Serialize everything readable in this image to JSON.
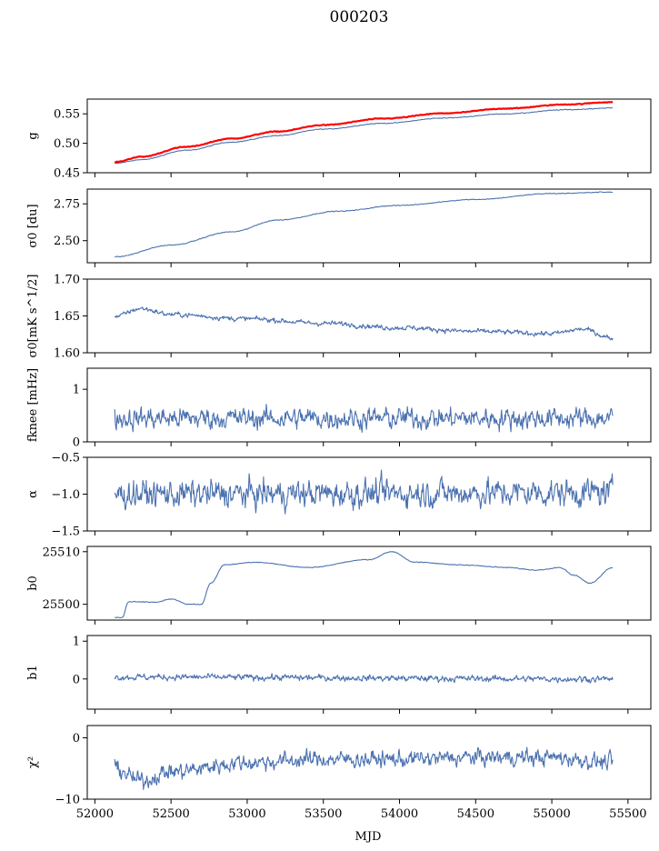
{
  "chart_data": {
    "type": "line",
    "title": "000203",
    "xlabel": "MJD",
    "xlim": [
      51950,
      55650
    ],
    "xticks": [
      52000,
      52500,
      53000,
      53500,
      54000,
      54500,
      55000,
      55500
    ],
    "xtick_labels": [
      "52000",
      "52500",
      "53000",
      "53500",
      "54000",
      "54500",
      "55000",
      "55500"
    ],
    "series_color": "#4c72b0",
    "highlight_color": "#ff0000",
    "x_start": 52130,
    "x_end": 55400,
    "panels": [
      {
        "ylabel": "g",
        "ylim": [
          0.45,
          0.575
        ],
        "yticks": [
          0.45,
          0.5,
          0.55
        ],
        "ytick_labels": [
          "0.45",
          "0.50",
          "0.55"
        ],
        "series": [
          {
            "color": "#4c72b0",
            "kind": "smooth",
            "anchors": [
              [
                52130,
                0.466
              ],
              [
                52300,
                0.472
              ],
              [
                52600,
                0.488
              ],
              [
                52900,
                0.502
              ],
              [
                53200,
                0.513
              ],
              [
                53500,
                0.524
              ],
              [
                53900,
                0.534
              ],
              [
                54300,
                0.543
              ],
              [
                54700,
                0.55
              ],
              [
                55100,
                0.557
              ],
              [
                55400,
                0.56
              ]
            ]
          },
          {
            "color": "#ff0000",
            "kind": "smooth",
            "width": 2.2,
            "anchors": [
              [
                52130,
                0.468
              ],
              [
                52300,
                0.477
              ],
              [
                52600,
                0.494
              ],
              [
                52900,
                0.508
              ],
              [
                53200,
                0.52
              ],
              [
                53500,
                0.531
              ],
              [
                53900,
                0.542
              ],
              [
                54300,
                0.551
              ],
              [
                54700,
                0.559
              ],
              [
                55100,
                0.566
              ],
              [
                55400,
                0.57
              ]
            ]
          }
        ]
      },
      {
        "ylabel": "σ0 [du]",
        "ylim": [
          2.35,
          2.85
        ],
        "yticks": [
          2.5,
          2.75
        ],
        "ytick_labels": [
          "2.50",
          "2.75"
        ],
        "series": [
          {
            "color": "#4c72b0",
            "kind": "smooth",
            "anchors": [
              [
                52130,
                2.39
              ],
              [
                52500,
                2.47
              ],
              [
                52900,
                2.56
              ],
              [
                53200,
                2.64
              ],
              [
                53600,
                2.7
              ],
              [
                54000,
                2.74
              ],
              [
                54500,
                2.78
              ],
              [
                55000,
                2.82
              ],
              [
                55400,
                2.83
              ]
            ]
          }
        ]
      },
      {
        "ylabel": "σ0[mK s^1/2]",
        "ylim": [
          1.6,
          1.7
        ],
        "yticks": [
          1.6,
          1.65,
          1.7
        ],
        "ytick_labels": [
          "1.60",
          "1.65",
          "1.70"
        ],
        "series": [
          {
            "color": "#4c72b0",
            "kind": "noise",
            "noise": 0.002,
            "anchors": [
              [
                52130,
                1.649
              ],
              [
                52300,
                1.66
              ],
              [
                52500,
                1.652
              ],
              [
                53000,
                1.646
              ],
              [
                53500,
                1.64
              ],
              [
                54000,
                1.634
              ],
              [
                54500,
                1.629
              ],
              [
                55000,
                1.626
              ],
              [
                55200,
                1.632
              ],
              [
                55400,
                1.62
              ]
            ]
          }
        ]
      },
      {
        "ylabel": "fknee [mHz]",
        "ylim": [
          0,
          1.4
        ],
        "yticks": [
          0,
          1
        ],
        "ytick_labels": [
          "0",
          "1"
        ],
        "series": [
          {
            "color": "#4c72b0",
            "kind": "noise",
            "noise": 0.12,
            "anchors": [
              [
                52130,
                0.45
              ],
              [
                55400,
                0.45
              ]
            ]
          }
        ]
      },
      {
        "ylabel": "α",
        "ylim": [
          -1.5,
          -0.5
        ],
        "yticks": [
          -1.5,
          -1.0,
          -0.5
        ],
        "ytick_labels": [
          "−1.5",
          "−1.0",
          "−0.5"
        ],
        "series": [
          {
            "color": "#4c72b0",
            "kind": "noise",
            "noise": 0.11,
            "anchors": [
              [
                52130,
                -1.0
              ],
              [
                55400,
                -0.98
              ]
            ]
          }
        ]
      },
      {
        "ylabel": "b0",
        "ylim": [
          25497,
          25511
        ],
        "yticks": [
          25500,
          25510
        ],
        "ytick_labels": [
          "25500",
          "25510"
        ],
        "series": [
          {
            "color": "#4c72b0",
            "kind": "smooth",
            "anchors": [
              [
                52130,
                25497.5
              ],
              [
                52180,
                25497.5
              ],
              [
                52220,
                25500.5
              ],
              [
                52400,
                25500.4
              ],
              [
                52500,
                25501
              ],
              [
                52620,
                25500
              ],
              [
                52700,
                25500
              ],
              [
                52760,
                25504
              ],
              [
                52850,
                25507.5
              ],
              [
                53050,
                25508
              ],
              [
                53400,
                25507
              ],
              [
                53800,
                25508.5
              ],
              [
                53950,
                25510
              ],
              [
                54100,
                25508
              ],
              [
                54400,
                25507.5
              ],
              [
                54700,
                25507
              ],
              [
                54900,
                25506.5
              ],
              [
                55050,
                25507
              ],
              [
                55150,
                25505.5
              ],
              [
                55250,
                25504
              ],
              [
                55400,
                25507
              ]
            ]
          }
        ]
      },
      {
        "ylabel": "b1",
        "ylim": [
          -0.8,
          1.15
        ],
        "yticks": [
          0,
          1
        ],
        "ytick_labels": [
          "0",
          "1"
        ],
        "series": [
          {
            "color": "#4c72b0",
            "kind": "noise",
            "noise": 0.05,
            "anchors": [
              [
                52130,
                0.05
              ],
              [
                55400,
                0.0
              ]
            ]
          }
        ]
      },
      {
        "ylabel": "χ²",
        "ylim": [
          -10,
          2
        ],
        "yticks": [
          -10,
          0
        ],
        "ytick_labels": [
          "−10",
          "0"
        ],
        "series": [
          {
            "color": "#4c72b0",
            "kind": "noise",
            "noise": 0.8,
            "anchors": [
              [
                52130,
                -5
              ],
              [
                52300,
                -7
              ],
              [
                52500,
                -5.5
              ],
              [
                53000,
                -4
              ],
              [
                53500,
                -3.5
              ],
              [
                54000,
                -3.5
              ],
              [
                54500,
                -3.2
              ],
              [
                55000,
                -3.2
              ],
              [
                55400,
                -4
              ]
            ]
          }
        ]
      }
    ]
  }
}
